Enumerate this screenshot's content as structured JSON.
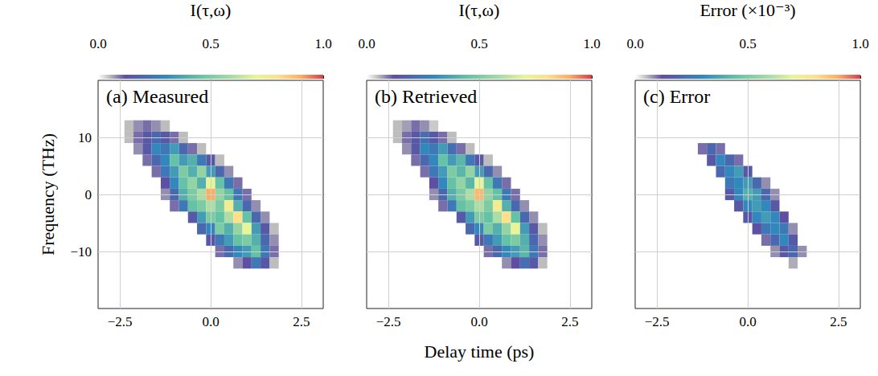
{
  "chart_data": [
    {
      "type": "heatmap",
      "title": "(a) Measured",
      "ylabel": "Frequency (THz)",
      "xlim": [
        -3.1,
        3.1
      ],
      "ylim": [
        -20,
        20
      ],
      "xticks": [
        {
          "value": -2.5,
          "label": "−2.5"
        },
        {
          "value": 0,
          "label": "0.0"
        },
        2.5
      ],
      "yticks": [
        {
          "value": -10,
          "label": "−10"
        },
        0,
        10
      ],
      "grid": true,
      "colorbar": {
        "label": "I(τ,ω)",
        "range": [
          0,
          1
        ],
        "ticks": [
          {
            "value": 0,
            "label": "0.0"
          },
          0.5,
          {
            "value": 1,
            "label": "1.0"
          }
        ]
      },
      "cells": [
        [
          -2.25,
          12,
          0.05
        ],
        [
          -2,
          12,
          0.08
        ],
        [
          -1.75,
          12,
          0.1
        ],
        [
          -1.5,
          12,
          0.08
        ],
        [
          -1.25,
          12,
          0.05
        ],
        [
          -2.25,
          10,
          0.05
        ],
        [
          -2,
          10,
          0.1
        ],
        [
          -1.75,
          10,
          0.15
        ],
        [
          -1.5,
          10,
          0.2
        ],
        [
          -1.25,
          10,
          0.15
        ],
        [
          -1,
          10,
          0.1
        ],
        [
          -0.75,
          10,
          0.05
        ],
        [
          -2,
          8,
          0.08
        ],
        [
          -1.75,
          8,
          0.15
        ],
        [
          -1.5,
          8,
          0.3
        ],
        [
          -1.25,
          8,
          0.25
        ],
        [
          -1,
          8,
          0.35
        ],
        [
          -0.75,
          8,
          0.2
        ],
        [
          -0.5,
          8,
          0.1
        ],
        [
          -0.25,
          8,
          0.05
        ],
        [
          -1.75,
          6,
          0.1
        ],
        [
          -1.5,
          6,
          0.2
        ],
        [
          -1.25,
          6,
          0.3
        ],
        [
          -1,
          6,
          0.45
        ],
        [
          -0.75,
          6,
          0.35
        ],
        [
          -0.5,
          6,
          0.4
        ],
        [
          -0.25,
          6,
          0.25
        ],
        [
          0,
          6,
          0.15
        ],
        [
          0.25,
          6,
          0.05
        ],
        [
          -1.5,
          4,
          0.1
        ],
        [
          -1.25,
          4,
          0.25
        ],
        [
          -1,
          4,
          0.35
        ],
        [
          -0.75,
          4,
          0.5
        ],
        [
          -0.5,
          4,
          0.4
        ],
        [
          -0.25,
          4,
          0.55
        ],
        [
          0,
          4,
          0.35
        ],
        [
          0.25,
          4,
          0.2
        ],
        [
          0.5,
          4,
          0.08
        ],
        [
          -1.25,
          2,
          0.12
        ],
        [
          -1,
          2,
          0.3
        ],
        [
          -0.75,
          2,
          0.45
        ],
        [
          -0.5,
          2,
          0.55
        ],
        [
          -0.25,
          2,
          0.4
        ],
        [
          0,
          2,
          0.7
        ],
        [
          0.25,
          2,
          0.45
        ],
        [
          0.5,
          2,
          0.25
        ],
        [
          0.75,
          2,
          0.1
        ],
        [
          -1.25,
          0,
          0.08
        ],
        [
          -1,
          0,
          0.2
        ],
        [
          -0.75,
          0,
          0.4
        ],
        [
          -0.5,
          0,
          0.5
        ],
        [
          -0.25,
          0,
          0.6
        ],
        [
          0,
          0,
          0.9
        ],
        [
          0.25,
          0,
          0.55
        ],
        [
          0.5,
          0,
          0.45
        ],
        [
          0.75,
          0,
          0.25
        ],
        [
          1,
          0,
          0.1
        ],
        [
          -1,
          -2,
          0.1
        ],
        [
          -0.75,
          -2,
          0.25
        ],
        [
          -0.5,
          -2,
          0.45
        ],
        [
          -0.25,
          -2,
          0.5
        ],
        [
          0,
          -2,
          0.6
        ],
        [
          0.25,
          -2,
          0.5
        ],
        [
          0.5,
          -2,
          0.75
        ],
        [
          0.75,
          -2,
          0.4
        ],
        [
          1,
          -2,
          0.2
        ],
        [
          1.25,
          -2,
          0.08
        ],
        [
          -0.5,
          -4,
          0.15
        ],
        [
          -0.25,
          -4,
          0.35
        ],
        [
          0,
          -4,
          0.5
        ],
        [
          0.25,
          -4,
          0.45
        ],
        [
          0.5,
          -4,
          0.6
        ],
        [
          0.75,
          -4,
          0.8
        ],
        [
          1,
          -4,
          0.45
        ],
        [
          1.25,
          -4,
          0.2
        ],
        [
          1.5,
          -4,
          0.08
        ],
        [
          -0.25,
          -6,
          0.2
        ],
        [
          0,
          -6,
          0.3
        ],
        [
          0.25,
          -6,
          0.5
        ],
        [
          0.5,
          -6,
          0.4
        ],
        [
          0.75,
          -6,
          0.55
        ],
        [
          1,
          -6,
          0.7
        ],
        [
          1.25,
          -6,
          0.35
        ],
        [
          1.5,
          -6,
          0.15
        ],
        [
          1.75,
          -6,
          0.05
        ],
        [
          0,
          -8,
          0.15
        ],
        [
          0.25,
          -8,
          0.25
        ],
        [
          0.5,
          -8,
          0.35
        ],
        [
          0.75,
          -8,
          0.45
        ],
        [
          1,
          -8,
          0.5
        ],
        [
          1.25,
          -8,
          0.4
        ],
        [
          1.5,
          -8,
          0.2
        ],
        [
          1.75,
          -8,
          0.08
        ],
        [
          0.25,
          -10,
          0.1
        ],
        [
          0.5,
          -10,
          0.2
        ],
        [
          0.75,
          -10,
          0.3
        ],
        [
          1,
          -10,
          0.35
        ],
        [
          1.25,
          -10,
          0.45
        ],
        [
          1.5,
          -10,
          0.25
        ],
        [
          1.75,
          -10,
          0.1
        ],
        [
          0.75,
          -12,
          0.08
        ],
        [
          1,
          -12,
          0.12
        ],
        [
          1.25,
          -12,
          0.25
        ],
        [
          1.5,
          -12,
          0.15
        ],
        [
          1.75,
          -12,
          0.05
        ]
      ]
    },
    {
      "type": "heatmap",
      "title": "(b) Retrieved",
      "xlabel": "Delay time (ps)",
      "xlim": [
        -3.1,
        3.1
      ],
      "ylim": [
        -20,
        20
      ],
      "xticks": [
        {
          "value": -2.5,
          "label": "−2.5"
        },
        {
          "value": 0,
          "label": "0.0"
        },
        2.5
      ],
      "yticks": [
        {
          "value": -10,
          "label": "−10"
        },
        0,
        10
      ],
      "grid": true,
      "tick_labels": "x",
      "colorbar": {
        "label": "I(τ,ω)",
        "range": [
          0,
          1
        ],
        "ticks": [
          {
            "value": 0,
            "label": "0.0"
          },
          0.5,
          {
            "value": 1,
            "label": "1.0"
          }
        ]
      },
      "cells": [
        [
          -2.25,
          12,
          0.05
        ],
        [
          -2,
          12,
          0.07
        ],
        [
          -1.75,
          12,
          0.1
        ],
        [
          -1.5,
          12,
          0.08
        ],
        [
          -1.25,
          12,
          0.04
        ],
        [
          -2.25,
          10,
          0.05
        ],
        [
          -2,
          10,
          0.1
        ],
        [
          -1.75,
          10,
          0.15
        ],
        [
          -1.5,
          10,
          0.22
        ],
        [
          -1.25,
          10,
          0.15
        ],
        [
          -1,
          10,
          0.1
        ],
        [
          -0.75,
          10,
          0.05
        ],
        [
          -2,
          8,
          0.08
        ],
        [
          -1.75,
          8,
          0.15
        ],
        [
          -1.5,
          8,
          0.3
        ],
        [
          -1.25,
          8,
          0.25
        ],
        [
          -1,
          8,
          0.35
        ],
        [
          -0.75,
          8,
          0.22
        ],
        [
          -0.5,
          8,
          0.1
        ],
        [
          -0.25,
          8,
          0.05
        ],
        [
          -1.75,
          6,
          0.1
        ],
        [
          -1.5,
          6,
          0.2
        ],
        [
          -1.25,
          6,
          0.3
        ],
        [
          -1,
          6,
          0.45
        ],
        [
          -0.75,
          6,
          0.35
        ],
        [
          -0.5,
          6,
          0.42
        ],
        [
          -0.25,
          6,
          0.25
        ],
        [
          0,
          6,
          0.15
        ],
        [
          0.25,
          6,
          0.05
        ],
        [
          -1.5,
          4,
          0.1
        ],
        [
          -1.25,
          4,
          0.25
        ],
        [
          -1,
          4,
          0.35
        ],
        [
          -0.75,
          4,
          0.5
        ],
        [
          -0.5,
          4,
          0.42
        ],
        [
          -0.25,
          4,
          0.55
        ],
        [
          0,
          4,
          0.35
        ],
        [
          0.25,
          4,
          0.2
        ],
        [
          0.5,
          4,
          0.08
        ],
        [
          -1.25,
          2,
          0.12
        ],
        [
          -1,
          2,
          0.3
        ],
        [
          -0.75,
          2,
          0.45
        ],
        [
          -0.5,
          2,
          0.55
        ],
        [
          -0.25,
          2,
          0.42
        ],
        [
          0,
          2,
          0.7
        ],
        [
          0.25,
          2,
          0.45
        ],
        [
          0.5,
          2,
          0.25
        ],
        [
          0.75,
          2,
          0.1
        ],
        [
          -1.25,
          0,
          0.08
        ],
        [
          -1,
          0,
          0.2
        ],
        [
          -0.75,
          0,
          0.4
        ],
        [
          -0.5,
          0,
          0.5
        ],
        [
          -0.25,
          0,
          0.6
        ],
        [
          0,
          0,
          0.88
        ],
        [
          0.25,
          0,
          0.55
        ],
        [
          0.5,
          0,
          0.45
        ],
        [
          0.75,
          0,
          0.25
        ],
        [
          1,
          0,
          0.1
        ],
        [
          -1,
          -2,
          0.1
        ],
        [
          -0.75,
          -2,
          0.25
        ],
        [
          -0.5,
          -2,
          0.45
        ],
        [
          -0.25,
          -2,
          0.5
        ],
        [
          0,
          -2,
          0.6
        ],
        [
          0.25,
          -2,
          0.5
        ],
        [
          0.5,
          -2,
          0.75
        ],
        [
          0.75,
          -2,
          0.4
        ],
        [
          1,
          -2,
          0.2
        ],
        [
          1.25,
          -2,
          0.08
        ],
        [
          -0.5,
          -4,
          0.15
        ],
        [
          -0.25,
          -4,
          0.35
        ],
        [
          0,
          -4,
          0.5
        ],
        [
          0.25,
          -4,
          0.45
        ],
        [
          0.5,
          -4,
          0.6
        ],
        [
          0.75,
          -4,
          0.8
        ],
        [
          1,
          -4,
          0.45
        ],
        [
          1.25,
          -4,
          0.2
        ],
        [
          1.5,
          -4,
          0.08
        ],
        [
          -0.25,
          -6,
          0.2
        ],
        [
          0,
          -6,
          0.3
        ],
        [
          0.25,
          -6,
          0.5
        ],
        [
          0.5,
          -6,
          0.4
        ],
        [
          0.75,
          -6,
          0.55
        ],
        [
          1,
          -6,
          0.7
        ],
        [
          1.25,
          -6,
          0.35
        ],
        [
          1.5,
          -6,
          0.15
        ],
        [
          1.75,
          -6,
          0.05
        ],
        [
          0,
          -8,
          0.15
        ],
        [
          0.25,
          -8,
          0.25
        ],
        [
          0.5,
          -8,
          0.35
        ],
        [
          0.75,
          -8,
          0.45
        ],
        [
          1,
          -8,
          0.5
        ],
        [
          1.25,
          -8,
          0.4
        ],
        [
          1.5,
          -8,
          0.2
        ],
        [
          1.75,
          -8,
          0.08
        ],
        [
          0.25,
          -10,
          0.1
        ],
        [
          0.5,
          -10,
          0.2
        ],
        [
          0.75,
          -10,
          0.3
        ],
        [
          1,
          -10,
          0.35
        ],
        [
          1.25,
          -10,
          0.42
        ],
        [
          1.5,
          -10,
          0.25
        ],
        [
          1.75,
          -10,
          0.1
        ],
        [
          0.75,
          -12,
          0.08
        ],
        [
          1,
          -12,
          0.12
        ],
        [
          1.25,
          -12,
          0.22
        ],
        [
          1.5,
          -12,
          0.15
        ],
        [
          1.75,
          -12,
          0.05
        ]
      ]
    },
    {
      "type": "heatmap",
      "title": "(c) Error",
      "xlim": [
        -3.1,
        3.1
      ],
      "ylim": [
        -20,
        20
      ],
      "xticks": [
        {
          "value": -2.5,
          "label": "−2.5"
        },
        {
          "value": 0,
          "label": "0.0"
        },
        2.5
      ],
      "yticks": [
        {
          "value": -10,
          "label": "−10"
        },
        0,
        10
      ],
      "grid": true,
      "tick_labels": "x",
      "colorbar": {
        "label": "Error (×10⁻³)",
        "range": [
          0,
          1
        ],
        "ticks": [
          {
            "value": 0,
            "label": "0.0"
          },
          0.5,
          {
            "value": 1,
            "label": "1.0"
          }
        ]
      },
      "cells": [
        [
          -1.25,
          8,
          0.1
        ],
        [
          -1,
          8,
          0.2
        ],
        [
          -0.75,
          8,
          0.1
        ],
        [
          -1,
          6,
          0.15
        ],
        [
          -0.75,
          6,
          0.3
        ],
        [
          -0.5,
          6,
          0.2
        ],
        [
          -0.25,
          6,
          0.1
        ],
        [
          -0.75,
          4,
          0.2
        ],
        [
          -0.5,
          4,
          0.3
        ],
        [
          -0.25,
          4,
          0.35
        ],
        [
          0,
          4,
          0.15
        ],
        [
          -0.5,
          2,
          0.25
        ],
        [
          -0.25,
          2,
          0.3
        ],
        [
          0,
          2,
          0.35
        ],
        [
          0.25,
          2,
          0.2
        ],
        [
          0.5,
          2,
          0.08
        ],
        [
          -0.5,
          0,
          0.15
        ],
        [
          -0.25,
          0,
          0.3
        ],
        [
          0,
          0,
          0.4
        ],
        [
          0.25,
          0,
          0.35
        ],
        [
          0.5,
          0,
          0.2
        ],
        [
          0.75,
          0,
          0.08
        ],
        [
          -0.25,
          -2,
          0.15
        ],
        [
          0,
          -2,
          0.3
        ],
        [
          0.25,
          -2,
          0.35
        ],
        [
          0.5,
          -2,
          0.3
        ],
        [
          0.75,
          -2,
          0.15
        ],
        [
          0,
          -4,
          0.15
        ],
        [
          0.25,
          -4,
          0.3
        ],
        [
          0.5,
          -4,
          0.35
        ],
        [
          0.75,
          -4,
          0.3
        ],
        [
          1,
          -4,
          0.12
        ],
        [
          0.25,
          -6,
          0.12
        ],
        [
          0.5,
          -6,
          0.25
        ],
        [
          0.75,
          -6,
          0.3
        ],
        [
          1,
          -6,
          0.25
        ],
        [
          1.25,
          -6,
          0.08
        ],
        [
          0.5,
          -8,
          0.1
        ],
        [
          0.75,
          -8,
          0.2
        ],
        [
          1,
          -8,
          0.3
        ],
        [
          1.25,
          -8,
          0.15
        ],
        [
          0.75,
          -10,
          0.08
        ],
        [
          1,
          -10,
          0.15
        ],
        [
          1.25,
          -10,
          0.2
        ],
        [
          1.5,
          -10,
          0.08
        ],
        [
          1.25,
          -12,
          0.06
        ]
      ]
    }
  ]
}
